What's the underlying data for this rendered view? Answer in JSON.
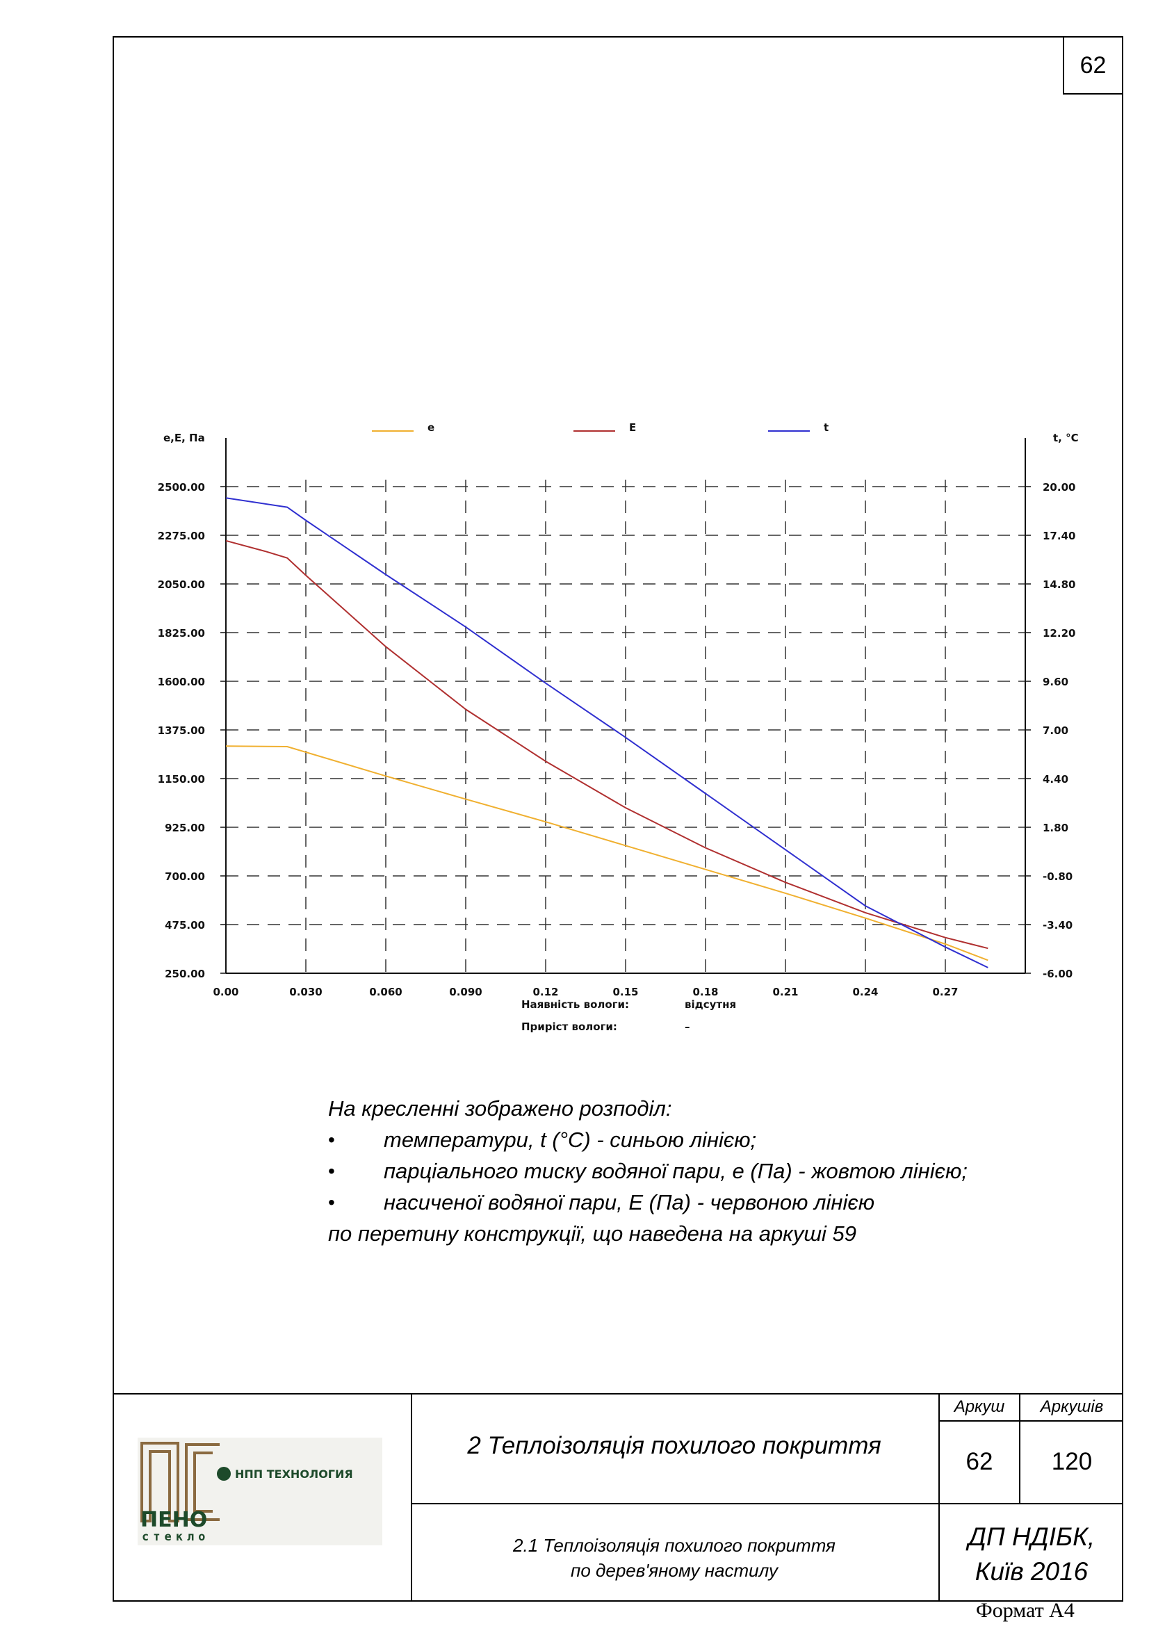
{
  "page": {
    "sheet_number": "62",
    "format_label": "Формат А4"
  },
  "chart_data": {
    "type": "line",
    "title": "",
    "legend": [
      {
        "label": "e",
        "color": "#f0b030"
      },
      {
        "label": "E",
        "color": "#b03030"
      },
      {
        "label": "t",
        "color": "#3030d0"
      }
    ],
    "legend_placement": "top",
    "y_left_label": "e,E, Па",
    "y_right_label": "t, °C",
    "x_ticks": [
      "0.00",
      "0.030",
      "0.060",
      "0.090",
      "0.12",
      "0.15",
      "0.18",
      "0.21",
      "0.24",
      "0.27"
    ],
    "y_left_ticks": [
      "2500.00",
      "2275.00",
      "2050.00",
      "1825.00",
      "1600.00",
      "1375.00",
      "1150.00",
      "925.00",
      "700.00",
      "475.00",
      "250.00"
    ],
    "y_right_ticks": [
      "20.00",
      "17.40",
      "14.80",
      "12.20",
      "9.60",
      "7.00",
      "4.40",
      "1.80",
      "-0.80",
      "-3.40",
      "-6.00"
    ],
    "x_range": [
      0,
      0.3
    ],
    "y_left_range": [
      250,
      2500
    ],
    "y_right_range": [
      -6,
      20
    ],
    "grid": true,
    "series": [
      {
        "name": "e",
        "axis": "left",
        "color": "#f0b030",
        "points": [
          [
            0,
            1300
          ],
          [
            0.023,
            1298
          ],
          [
            0.06,
            1162
          ],
          [
            0.09,
            1055
          ],
          [
            0.12,
            950
          ],
          [
            0.15,
            840
          ],
          [
            0.18,
            730
          ],
          [
            0.21,
            620
          ],
          [
            0.24,
            505
          ],
          [
            0.27,
            385
          ],
          [
            0.286,
            310
          ]
        ]
      },
      {
        "name": "E",
        "axis": "left",
        "color": "#b03030",
        "points": [
          [
            0,
            2250
          ],
          [
            0.015,
            2200
          ],
          [
            0.023,
            2170
          ],
          [
            0.03,
            2090
          ],
          [
            0.045,
            1925
          ],
          [
            0.06,
            1760
          ],
          [
            0.09,
            1470
          ],
          [
            0.12,
            1230
          ],
          [
            0.15,
            1015
          ],
          [
            0.18,
            830
          ],
          [
            0.21,
            670
          ],
          [
            0.24,
            530
          ],
          [
            0.27,
            415
          ],
          [
            0.286,
            365
          ]
        ]
      },
      {
        "name": "t",
        "axis": "right",
        "color": "#3030d0",
        "points": [
          [
            0,
            19.4
          ],
          [
            0.023,
            18.9
          ],
          [
            0.03,
            18.2
          ],
          [
            0.06,
            15.3
          ],
          [
            0.09,
            12.5
          ],
          [
            0.12,
            9.5
          ],
          [
            0.15,
            6.6
          ],
          [
            0.18,
            3.6
          ],
          [
            0.21,
            0.6
          ],
          [
            0.24,
            -2.4
          ],
          [
            0.27,
            -4.6
          ],
          [
            0.286,
            -5.7
          ]
        ]
      }
    ],
    "info": [
      {
        "label": "Наявність вологи:",
        "value": "відсутня"
      },
      {
        "label": "Приріст вологи:",
        "value": "–"
      }
    ]
  },
  "caption": {
    "intro": "На кресленні зображено розподіл:",
    "items": [
      "температури, t (°C) - синьою лінією;",
      "парціального тиску водяної пари, e (Па) - жовтою лінією;",
      "насиченої водяної пари, E (Па) - червоною лінією"
    ],
    "outro": "по перетину конструкції, що наведена на аркуші 59"
  },
  "title_block": {
    "logo_top": "НПП ТЕХНОЛОГИЯ",
    "logo_brand": "ПЕНО",
    "logo_sub": "стекло",
    "logo_mark": "ПС",
    "main_title": "2 Теплоізоляція похилого покриття",
    "sub_title_line1": "2.1 Теплоізоляція похилого покриття",
    "sub_title_line2": "по дерев'яному настилу",
    "sheet_label": "Аркуш",
    "sheets_label": "Аркушів",
    "sheet_value": "62",
    "sheets_value": "120",
    "org_line1": "ДП НДІБК,",
    "org_line2": "Київ 2016"
  },
  "colors": {
    "e_line": "#f0b030",
    "E_line": "#b03030",
    "t_line": "#3030d0",
    "logo_brown": "#8a6a40",
    "logo_green": "#1d4a2a"
  }
}
